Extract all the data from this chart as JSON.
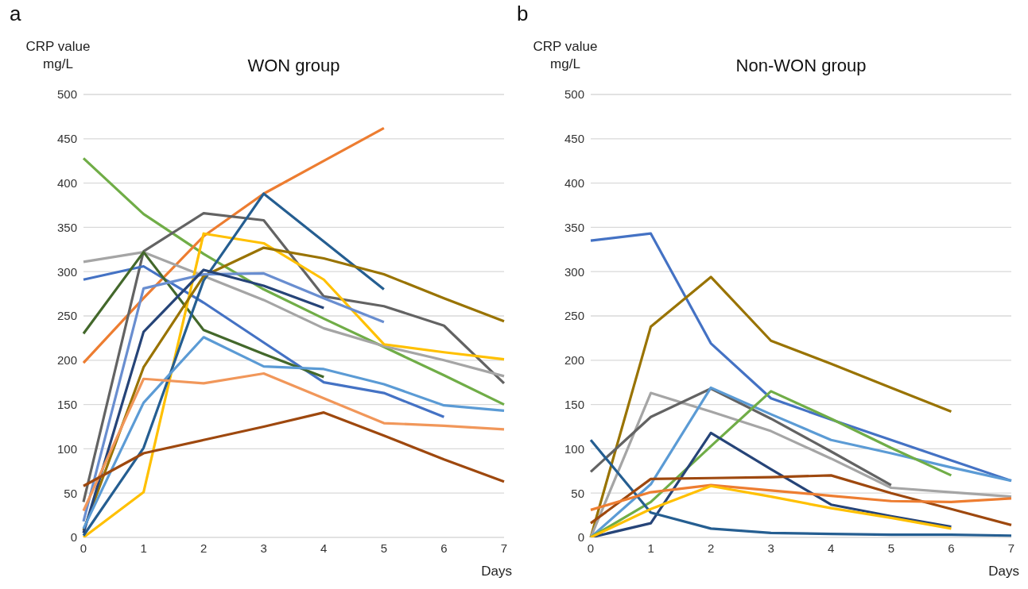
{
  "chart_data": [
    {
      "type": "line",
      "title": "WON group",
      "ylabel": "CRP value\nmg/L",
      "xlabel": "Days",
      "annotations": [
        "a"
      ],
      "categories": [
        "0",
        "1",
        "2",
        "3",
        "4",
        "5",
        "6",
        "7"
      ],
      "ylim": [
        0,
        500
      ],
      "yticks": [
        0,
        50,
        100,
        150,
        200,
        250,
        300,
        350,
        400,
        450,
        500
      ],
      "grid": "y",
      "line_style": "solid",
      "series": [
        {
          "color": "#70ad47",
          "values": [
            428,
            365,
            320,
            280,
            247,
            215,
            183,
            150
          ]
        },
        {
          "color": "#ed7d31",
          "values": [
            197,
            270,
            340,
            388,
            425,
            462,
            null,
            null
          ]
        },
        {
          "color": "#636363",
          "values": [
            40,
            323,
            366,
            358,
            272,
            261,
            239,
            174
          ]
        },
        {
          "color": "#a5a5a5",
          "values": [
            311,
            322,
            295,
            268,
            236,
            216,
            200,
            182
          ]
        },
        {
          "color": "#4472c4",
          "values": [
            291,
            306,
            265,
            220,
            175,
            163,
            136,
            null
          ]
        },
        {
          "color": "#43682b",
          "values": [
            230,
            322,
            234,
            207,
            181,
            null,
            null,
            null
          ]
        },
        {
          "color": "#ffc000",
          "values": [
            0,
            51,
            343,
            332,
            291,
            218,
            209,
            201
          ]
        },
        {
          "color": "#255e91",
          "values": [
            2,
            101,
            290,
            388,
            334,
            280,
            null,
            null
          ]
        },
        {
          "color": "#997300",
          "values": [
            8,
            192,
            295,
            327,
            315,
            297,
            270,
            244
          ]
        },
        {
          "color": "#698ed0",
          "values": [
            18,
            281,
            297,
            298,
            270,
            243,
            null,
            null
          ]
        },
        {
          "color": "#264478",
          "values": [
            5,
            232,
            302,
            284,
            259,
            null,
            null,
            null
          ]
        },
        {
          "color": "#5b9bd5",
          "values": [
            10,
            152,
            226,
            193,
            190,
            173,
            149,
            143
          ]
        },
        {
          "color": "#f1975a",
          "values": [
            30,
            179,
            174,
            185,
            157,
            129,
            126,
            122
          ]
        },
        {
          "color": "#9e480e",
          "values": [
            58,
            95,
            110,
            125,
            141,
            115,
            88,
            63
          ]
        }
      ]
    },
    {
      "type": "line",
      "title": "Non-WON group",
      "ylabel": "CRP value\nmg/L",
      "xlabel": "Days",
      "annotations": [
        "b"
      ],
      "categories": [
        "0",
        "1",
        "2",
        "3",
        "4",
        "5",
        "6",
        "7"
      ],
      "ylim": [
        0,
        500
      ],
      "yticks": [
        0,
        50,
        100,
        150,
        200,
        250,
        300,
        350,
        400,
        450,
        500
      ],
      "grid": "y",
      "line_style": "solid",
      "series": [
        {
          "color": "#4472c4",
          "values": [
            335,
            343,
            219,
            157,
            133,
            110,
            87,
            64
          ]
        },
        {
          "color": "#997300",
          "values": [
            0,
            238,
            294,
            222,
            196,
            169,
            142,
            null
          ]
        },
        {
          "color": "#a5a5a5",
          "values": [
            0,
            163,
            142,
            120,
            89,
            56,
            51,
            46
          ]
        },
        {
          "color": "#636363",
          "values": [
            74,
            136,
            168,
            134,
            97,
            59,
            null,
            null
          ]
        },
        {
          "color": "#5b9bd5",
          "values": [
            0,
            60,
            169,
            139,
            110,
            95,
            79,
            64
          ]
        },
        {
          "color": "#70ad47",
          "values": [
            0,
            40,
            103,
            165,
            134,
            101,
            70,
            null
          ]
        },
        {
          "color": "#264478",
          "values": [
            0,
            16,
            118,
            77,
            37,
            24,
            12,
            null
          ]
        },
        {
          "color": "#255e91",
          "values": [
            110,
            28,
            10,
            5,
            4,
            3,
            3,
            2
          ]
        },
        {
          "color": "#9e480e",
          "values": [
            16,
            66,
            67,
            68,
            70,
            50,
            32,
            14
          ]
        },
        {
          "color": "#ed7d31",
          "values": [
            31,
            51,
            59,
            53,
            47,
            41,
            40,
            44
          ]
        },
        {
          "color": "#ffc000",
          "values": [
            0,
            32,
            58,
            46,
            33,
            22,
            10,
            null
          ]
        }
      ]
    }
  ]
}
